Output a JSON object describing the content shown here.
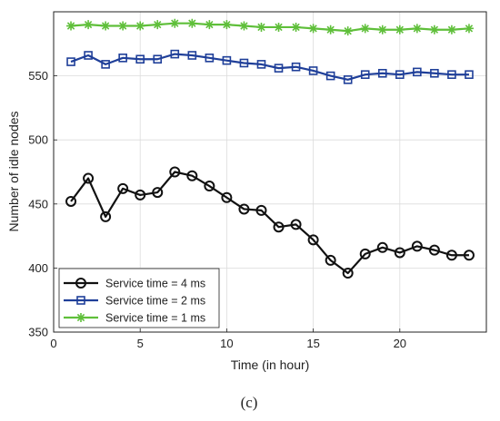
{
  "chart_data": {
    "type": "line",
    "xlabel": "Time (in hour)",
    "ylabel": "Number of idle nodes",
    "xlim": [
      0,
      25
    ],
    "ylim": [
      350,
      600
    ],
    "xticks": [
      0,
      5,
      10,
      15,
      20
    ],
    "yticks": [
      350,
      400,
      450,
      500,
      550
    ],
    "grid": true,
    "legend_position": "bottom-left",
    "x": [
      1,
      2,
      3,
      4,
      5,
      6,
      7,
      8,
      9,
      10,
      11,
      12,
      13,
      14,
      15,
      16,
      17,
      18,
      19,
      20,
      21,
      22,
      23,
      24
    ],
    "series": [
      {
        "name": "Service time = 4 ms",
        "color": "#111111",
        "marker": "circle",
        "values": [
          452,
          470,
          440,
          462,
          457,
          459,
          475,
          472,
          464,
          455,
          446,
          445,
          432,
          434,
          422,
          406,
          396,
          411,
          416,
          412,
          417,
          414,
          410,
          410
        ]
      },
      {
        "name": "Service time = 2 ms",
        "color": "#1f3f99",
        "marker": "square",
        "values": [
          561,
          566,
          559,
          564,
          563,
          563,
          567,
          566,
          564,
          562,
          560,
          559,
          556,
          557,
          554,
          550,
          547,
          551,
          552,
          551,
          553,
          552,
          551,
          551
        ]
      },
      {
        "name": "Service time = 1 ms",
        "color": "#5fbf3a",
        "marker": "asterisk",
        "values": [
          589,
          590,
          589,
          589,
          589,
          590,
          591,
          591,
          590,
          590,
          589,
          588,
          588,
          588,
          587,
          586,
          585,
          587,
          586,
          586,
          587,
          586,
          586,
          587
        ]
      }
    ]
  },
  "caption": "(c)"
}
